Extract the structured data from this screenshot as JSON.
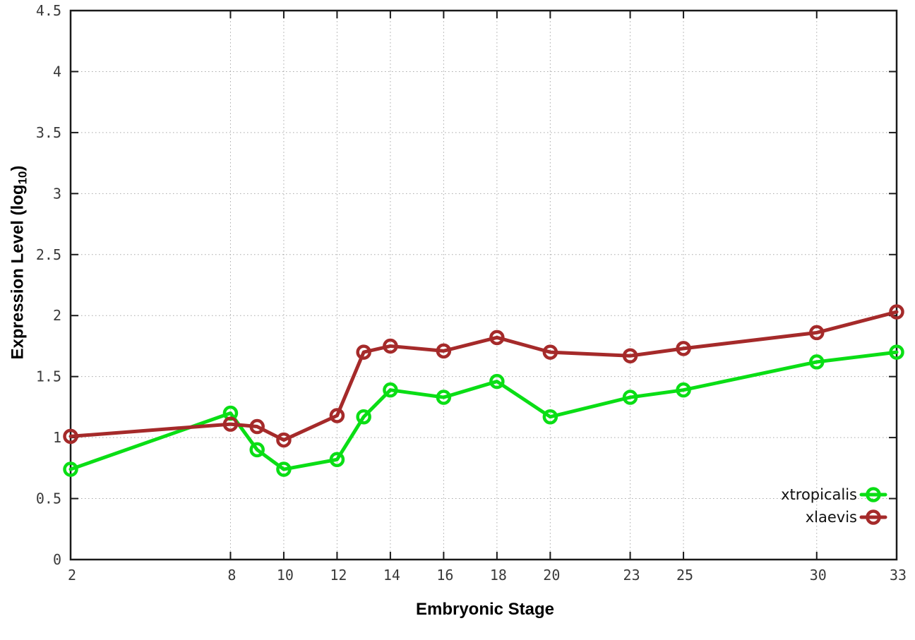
{
  "chart_data": {
    "type": "line",
    "title": "",
    "xlabel": "Embryonic Stage",
    "ylabel": {
      "main": "Expression Level (log",
      "sub": "10",
      "close": ")"
    },
    "xlim": [
      2,
      33
    ],
    "ylim": [
      0,
      4.5
    ],
    "x_ticks": [
      2,
      8,
      10,
      12,
      14,
      16,
      18,
      20,
      23,
      25,
      30,
      33
    ],
    "y_ticks": [
      0,
      0.5,
      1,
      1.5,
      2,
      2.5,
      3,
      3.5,
      4,
      4.5
    ],
    "grid": true,
    "legend_position": "inside-bottom-right",
    "x": [
      2,
      8,
      9,
      10,
      12,
      13,
      14,
      16,
      18,
      20,
      23,
      25,
      30,
      33
    ],
    "series": [
      {
        "name": "xtropicalis",
        "color": "#0ade15",
        "marker": "open-circle",
        "values": [
          0.74,
          1.2,
          0.9,
          0.74,
          0.82,
          1.17,
          1.39,
          1.33,
          1.46,
          1.17,
          1.33,
          1.39,
          1.62,
          1.7
        ]
      },
      {
        "name": "xlaevis",
        "color": "#a52a2a",
        "marker": "open-circle",
        "values": [
          1.01,
          1.11,
          1.09,
          0.98,
          1.18,
          1.7,
          1.75,
          1.71,
          1.82,
          1.7,
          1.67,
          1.73,
          1.86,
          2.03
        ]
      }
    ]
  },
  "style": {
    "border_color": "#1a1a1a",
    "grid_color": "#a8a8a8",
    "tick_label_color": "#3a3a3a",
    "background": "#ffffff"
  }
}
